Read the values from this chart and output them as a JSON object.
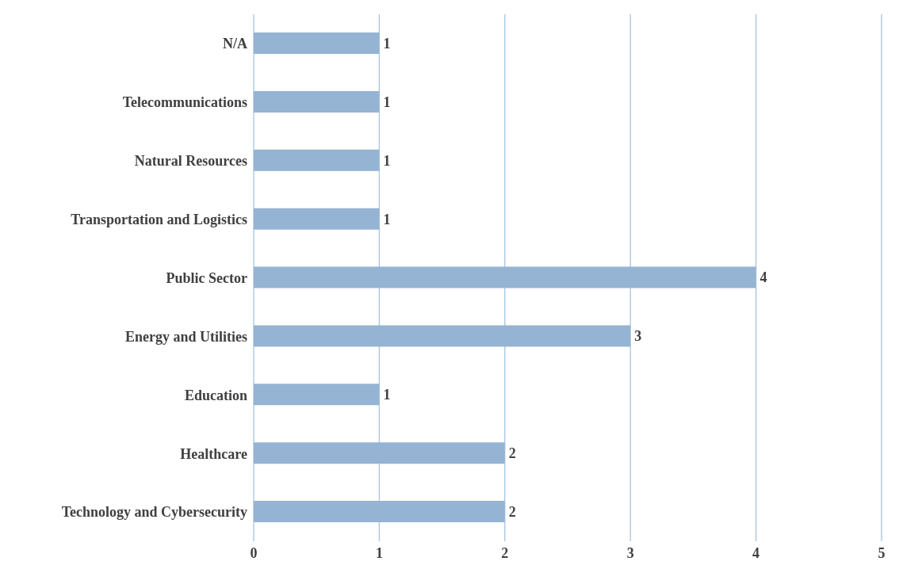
{
  "chart_data": {
    "type": "bar",
    "orientation": "horizontal",
    "categories": [
      "N/A",
      "Telecommunications",
      "Natural Resources",
      "Transportation and Logistics",
      "Public Sector",
      "Energy and Utilities",
      "Education",
      "Healthcare",
      "Technology and Cybersecurity"
    ],
    "values": [
      1,
      1,
      1,
      1,
      4,
      3,
      1,
      2,
      2
    ],
    "color": "#95b3d3",
    "xlim": [
      0,
      5
    ],
    "xticks": [
      0,
      1,
      2,
      3,
      4,
      5
    ],
    "grid": "x",
    "data_labels": true,
    "legend": false
  }
}
